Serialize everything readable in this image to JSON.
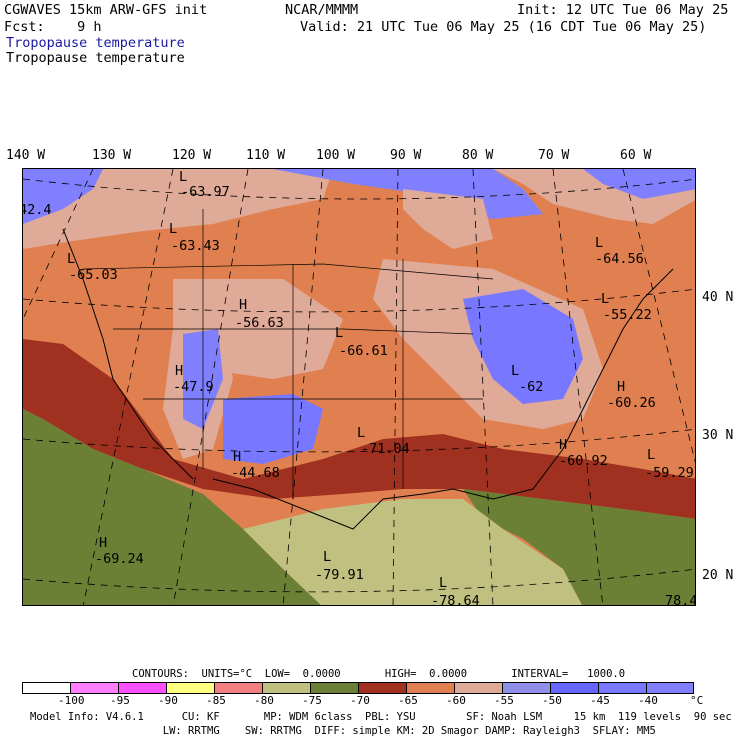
{
  "header": {
    "model": "CGWAVES 15km ARW-GFS init",
    "org": "NCAR/MMMM",
    "init": "Init: 12 UTC Tue 06 May 25",
    "fcst": "Fcst:    9 h",
    "valid": "Valid: 21 UTC Tue 06 May 25 (16 CDT Tue 06 May 25)",
    "field_blue": "Tropopause temperature",
    "field_black": "Tropopause temperature"
  },
  "lon_labels": [
    "140 W",
    "130 W",
    "120 W",
    "110 W",
    "100 W",
    "90 W",
    "80 W",
    "70 W",
    "60 W"
  ],
  "lat_labels": [
    "40 N",
    "30 N",
    "20 N"
  ],
  "map_labels": {
    "l1_sym": "L",
    "l1_val": "-63.97",
    "l2_sym": "L",
    "l2_val": "-63.43",
    "l3_sym": "L",
    "l3_val": "-65.03",
    "edge_w": "42.4",
    "h1_sym": "H",
    "h1_val": "-56.63",
    "l4_sym": "L",
    "l4_val": "-66.61",
    "h2_sym": "H",
    "h2_val": "-47.9",
    "h3_sym": "H",
    "h3_val": "-44.68",
    "l5_sym": "L",
    "l5_val": "-71.04",
    "l6_sym": "L",
    "l6_val": "-62",
    "l7_sym": "L",
    "l7_val": "-64.56",
    "l8_sym": "L",
    "l8_val": "-55.22",
    "h4_sym": "H",
    "h4_val": "-60.26",
    "h5_sym": "H",
    "h5_val": "-60.92",
    "l9_sym": "L",
    "l9_val": "-59.29",
    "h6_sym": "H",
    "h6_val": "-69.24",
    "l10_sym": "L",
    "l10_val": "-79.91",
    "l11_sym": "L",
    "l11_val": "-78.64",
    "edge_e": "78.4"
  },
  "contours": {
    "text": "CONTOURS:  UNITS=°C  LOW=  0.0000       HIGH=  0.0000       INTERVAL=   1000.0"
  },
  "legend": {
    "colors": [
      "#ffffff",
      "#ff7fff",
      "#ff50ff",
      "#ffff80",
      "#f08080",
      "#c0c080",
      "#6b7f35",
      "#a03020",
      "#e08050",
      "#e0aa98",
      "#9090e8",
      "#6666ff",
      "#7777ff",
      "#8080ff"
    ],
    "ticks": [
      "-100",
      "-95",
      "-90",
      "-85",
      "-80",
      "-75",
      "-70",
      "-65",
      "-60",
      "-55",
      "-50",
      "-45",
      "-40",
      "°C"
    ]
  },
  "model_info": {
    "line1": "Model Info: V4.6.1      CU: KF       MP: WDM 6class  PBL: YSU        SF: Noah LSM     15 km  119 levels  90 sec",
    "line2": "                     LW: RRTMG    SW: RRTMG  DIFF: simple KM: 2D Smagor DAMP: Rayleigh3  SFLAY: MM5"
  }
}
